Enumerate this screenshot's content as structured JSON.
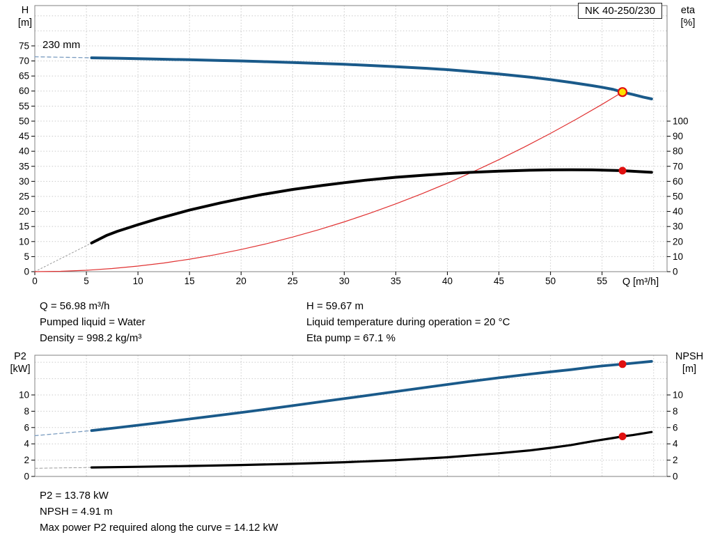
{
  "pump_type": "NK 40-250/230",
  "impeller": "230 mm",
  "info_top": {
    "q": "Q = 56.98 m³/h",
    "liquid": "Pumped liquid = Water",
    "density": "Density = 998.2 kg/m³",
    "h": "H = 59.67 m",
    "temperature": "Liquid temperature during operation = 20 °C",
    "eta": "Eta pump = 67.1 %"
  },
  "info_bottom": {
    "p2": "P2 = 13.78 kW",
    "npsh": "NPSH = 4.91 m",
    "max_power": "Max power P2 required along the curve = 14.12 kW"
  },
  "colors": {
    "curve_blue": "#1a5a8a",
    "curve_black": "#000000",
    "system_red": "#e03030",
    "duty_fill": "#ffe100",
    "duty_ring": "#e01010",
    "dash_blue": "#7a9cc0",
    "dash_gray": "#9a9a9a",
    "grid": "#c9c9c9"
  },
  "chart_data": [
    {
      "type": "line",
      "title": "QH and efficiency curves",
      "x": {
        "min": 0,
        "max": 61.3,
        "title": "Q [m³/h]",
        "ticks": [
          0,
          5,
          10,
          15,
          20,
          25,
          30,
          35,
          40,
          45,
          50,
          55,
          60
        ],
        "tick_labels": [
          "0",
          "5",
          "10",
          "15",
          "20",
          "25",
          "30",
          "35",
          "40",
          "45",
          "50",
          "55",
          ""
        ]
      },
      "y_left": {
        "min": 0,
        "max": 88.4,
        "title_line1": "H",
        "title_line2": "[m]",
        "ticks": [
          0,
          5,
          10,
          15,
          20,
          25,
          30,
          35,
          40,
          45,
          50,
          55,
          60,
          65,
          70,
          75,
          80,
          85
        ],
        "tick_labels": [
          "0",
          "5",
          "10",
          "15",
          "20",
          "25",
          "30",
          "35",
          "40",
          "45",
          "50",
          "55",
          "60",
          "65",
          "70",
          "75",
          "",
          ""
        ]
      },
      "y_right": {
        "min": 0,
        "max": 176.8,
        "title_line1": "eta",
        "title_line2": "[%]",
        "ticks": [
          0,
          10,
          20,
          30,
          40,
          50,
          60,
          70,
          80,
          90,
          100
        ],
        "tick_labels": [
          "0",
          "10",
          "20",
          "30",
          "40",
          "50",
          "60",
          "70",
          "80",
          "90",
          "100"
        ]
      },
      "series": [
        {
          "name": "head-curve-dashed-leadin",
          "axis": "left",
          "color": "#7a9cc0",
          "width": 1.3,
          "dash": "5 4",
          "points": [
            [
              0,
              71.4
            ],
            [
              5.5,
              71.05
            ]
          ]
        },
        {
          "name": "eta-curve-dashed-leadin",
          "axis": "right",
          "color": "#9a9a9a",
          "width": 1,
          "dash": "2 3",
          "points": [
            [
              0,
              0
            ],
            [
              5.5,
              19
            ]
          ]
        },
        {
          "name": "system-curve",
          "axis": "left",
          "color": "#e03030",
          "width": 1.2,
          "dash": "",
          "points": [
            [
              0,
              0
            ],
            [
              2.5,
              0.11
            ],
            [
              5,
              0.46
            ],
            [
              7.5,
              1.03
            ],
            [
              10,
              1.84
            ],
            [
              12.5,
              2.87
            ],
            [
              15,
              4.14
            ],
            [
              17.5,
              5.63
            ],
            [
              20,
              7.35
            ],
            [
              22.5,
              9.3
            ],
            [
              25,
              11.49
            ],
            [
              27.5,
              13.9
            ],
            [
              30,
              16.54
            ],
            [
              32.5,
              19.41
            ],
            [
              35,
              22.51
            ],
            [
              37.5,
              25.84
            ],
            [
              40,
              29.4
            ],
            [
              42.5,
              33.19
            ],
            [
              45,
              37.21
            ],
            [
              47.5,
              41.46
            ],
            [
              50,
              45.94
            ],
            [
              52.5,
              50.65
            ],
            [
              55,
              55.59
            ],
            [
              56.98,
              59.67
            ]
          ]
        },
        {
          "name": "eta-curve",
          "axis": "right",
          "color": "#000000",
          "width": 4,
          "dash": "",
          "points": [
            [
              5.5,
              19
            ],
            [
              7,
              24.2
            ],
            [
              8,
              26.8
            ],
            [
              10,
              31.2
            ],
            [
              12,
              35.3
            ],
            [
              15,
              40.9
            ],
            [
              18,
              45.7
            ],
            [
              20,
              48.5
            ],
            [
              22,
              51.2
            ],
            [
              25,
              54.6
            ],
            [
              28,
              57.4
            ],
            [
              30,
              59.1
            ],
            [
              32,
              60.7
            ],
            [
              35,
              62.7
            ],
            [
              38,
              64.2
            ],
            [
              40,
              65.1
            ],
            [
              42,
              65.9
            ],
            [
              45,
              66.8
            ],
            [
              48,
              67.4
            ],
            [
              50,
              67.6
            ],
            [
              52,
              67.7
            ],
            [
              54,
              67.6
            ],
            [
              55,
              67.5
            ],
            [
              56,
              67.3
            ],
            [
              56.98,
              67.1
            ],
            [
              58,
              66.7
            ],
            [
              59.8,
              66.0
            ]
          ]
        },
        {
          "name": "head-curve",
          "axis": "left",
          "color": "#1a5a8a",
          "width": 4,
          "dash": "",
          "points": [
            [
              5.5,
              71.05
            ],
            [
              8,
              70.9
            ],
            [
              10,
              70.75
            ],
            [
              12,
              70.6
            ],
            [
              15,
              70.4
            ],
            [
              18,
              70.15
            ],
            [
              20,
              70.0
            ],
            [
              22,
              69.8
            ],
            [
              25,
              69.5
            ],
            [
              28,
              69.15
            ],
            [
              30,
              68.9
            ],
            [
              32,
              68.6
            ],
            [
              35,
              68.1
            ],
            [
              38,
              67.55
            ],
            [
              40,
              67.1
            ],
            [
              42,
              66.55
            ],
            [
              45,
              65.65
            ],
            [
              48,
              64.6
            ],
            [
              50,
              63.8
            ],
            [
              52,
              62.85
            ],
            [
              54,
              61.8
            ],
            [
              55,
              61.25
            ],
            [
              56,
              60.6
            ],
            [
              56.98,
              59.67
            ],
            [
              58,
              58.85
            ],
            [
              59,
              58.0
            ],
            [
              59.8,
              57.4
            ]
          ]
        }
      ],
      "markers": [
        {
          "name": "duty-point-head",
          "axis": "left",
          "x": 56.98,
          "v": 59.67,
          "r": 6,
          "fill": "#ffe100",
          "stroke": "#e01010",
          "stroke_width": 2.2
        },
        {
          "name": "duty-point-eta",
          "axis": "right",
          "x": 56.98,
          "v": 67.1,
          "r": 5.5,
          "fill": "#e01010"
        }
      ]
    },
    {
      "type": "line",
      "title": "P2 and NPSH curves",
      "x": {
        "min": 0,
        "max": 61.3,
        "title": "",
        "ticks": [
          0,
          5,
          10,
          15,
          20,
          25,
          30,
          35,
          40,
          45,
          50,
          55,
          60
        ],
        "tick_labels": [
          "",
          "",
          "",
          "",
          "",
          "",
          "",
          "",
          "",
          "",
          "",
          "",
          ""
        ]
      },
      "y_left": {
        "min": 0,
        "max": 14.87,
        "title_line1": "P2",
        "title_line2": "[kW]",
        "ticks": [
          0,
          2,
          4,
          6,
          8,
          10,
          12,
          14
        ],
        "tick_labels": [
          "0",
          "2",
          "4",
          "6",
          "8",
          "10",
          "",
          ""
        ]
      },
      "y_right": {
        "min": 0,
        "max": 14.87,
        "title_line1": "NPSH",
        "title_line2": "[m]",
        "ticks": [
          0,
          2,
          4,
          6,
          8,
          10,
          12,
          14
        ],
        "tick_labels": [
          "0",
          "2",
          "4",
          "6",
          "8",
          "10",
          "",
          ""
        ]
      },
      "series": [
        {
          "name": "p2-curve-dashed-leadin",
          "axis": "left",
          "color": "#7a9cc0",
          "width": 1.3,
          "dash": "5 4",
          "points": [
            [
              0,
              5.0
            ],
            [
              5.5,
              5.62
            ]
          ]
        },
        {
          "name": "npsh-curve-dashed-leadin",
          "axis": "right",
          "color": "#9a9a9a",
          "width": 1,
          "dash": "4 3",
          "points": [
            [
              0,
              1.0
            ],
            [
              5.5,
              1.1
            ]
          ]
        },
        {
          "name": "npsh-curve",
          "axis": "right",
          "color": "#000000",
          "width": 3.2,
          "dash": "",
          "points": [
            [
              5.5,
              1.1
            ],
            [
              10,
              1.18
            ],
            [
              15,
              1.28
            ],
            [
              20,
              1.4
            ],
            [
              25,
              1.55
            ],
            [
              30,
              1.74
            ],
            [
              35,
              2.0
            ],
            [
              40,
              2.35
            ],
            [
              45,
              2.85
            ],
            [
              48,
              3.2
            ],
            [
              50,
              3.5
            ],
            [
              52,
              3.85
            ],
            [
              54,
              4.3
            ],
            [
              55,
              4.5
            ],
            [
              56,
              4.7
            ],
            [
              56.98,
              4.91
            ],
            [
              58,
              5.08
            ],
            [
              59,
              5.28
            ],
            [
              59.8,
              5.45
            ]
          ]
        },
        {
          "name": "p2-curve",
          "axis": "left",
          "color": "#1a5a8a",
          "width": 3.8,
          "dash": "",
          "points": [
            [
              5.5,
              5.62
            ],
            [
              8,
              5.98
            ],
            [
              10,
              6.28
            ],
            [
              12,
              6.58
            ],
            [
              15,
              7.05
            ],
            [
              18,
              7.52
            ],
            [
              20,
              7.84
            ],
            [
              22,
              8.17
            ],
            [
              25,
              8.68
            ],
            [
              28,
              9.2
            ],
            [
              30,
              9.55
            ],
            [
              32,
              9.9
            ],
            [
              35,
              10.42
            ],
            [
              38,
              10.94
            ],
            [
              40,
              11.28
            ],
            [
              42,
              11.62
            ],
            [
              45,
              12.1
            ],
            [
              48,
              12.55
            ],
            [
              50,
              12.84
            ],
            [
              52,
              13.1
            ],
            [
              54,
              13.42
            ],
            [
              55,
              13.55
            ],
            [
              56.98,
              13.78
            ],
            [
              58,
              13.9
            ],
            [
              59.8,
              14.12
            ]
          ]
        }
      ],
      "markers": [
        {
          "name": "duty-point-p2",
          "axis": "left",
          "x": 56.98,
          "v": 13.78,
          "r": 5.5,
          "fill": "#e01010"
        },
        {
          "name": "duty-point-npsh",
          "axis": "right",
          "x": 56.98,
          "v": 4.91,
          "r": 5.5,
          "fill": "#e01010"
        }
      ]
    }
  ]
}
